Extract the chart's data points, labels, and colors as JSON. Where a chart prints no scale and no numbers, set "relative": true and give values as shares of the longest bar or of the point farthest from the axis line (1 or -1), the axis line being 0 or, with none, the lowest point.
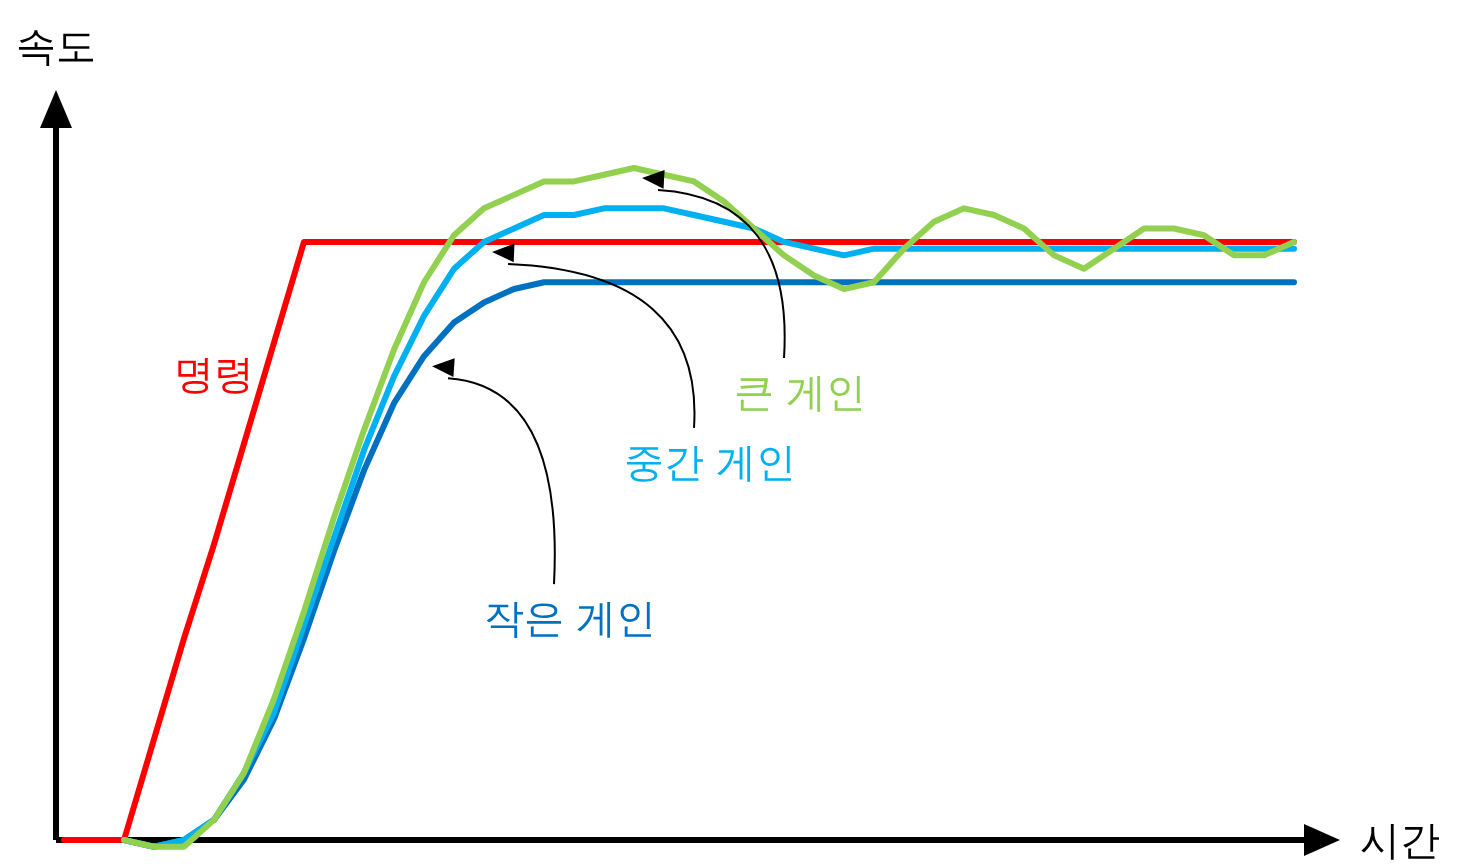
{
  "chart_data": {
    "type": "line",
    "relative": true,
    "xlabel": "시간",
    "ylabel": "속도",
    "categories": [
      null,
      null,
      null,
      null,
      null,
      null,
      null,
      null,
      null,
      null,
      null,
      null,
      null,
      null,
      null,
      null,
      null,
      null,
      null,
      null,
      null,
      null,
      null,
      null,
      null,
      null,
      null,
      null,
      null,
      null,
      null,
      null,
      null,
      null,
      null,
      null,
      null,
      null,
      null,
      null,
      null,
      null
    ],
    "series": [
      {
        "name": "명령",
        "color": "#ff0000",
        "values": [
          0,
          0,
          0,
          0.15,
          0.3,
          0.44,
          0.59,
          0.74,
          0.89,
          0.89,
          0.89,
          0.89,
          0.89,
          0.89,
          0.89,
          0.89,
          0.89,
          0.89,
          0.89,
          0.89,
          0.89,
          0.89,
          0.89,
          0.89,
          0.89,
          0.89,
          0.89,
          0.89,
          0.89,
          0.89,
          0.89,
          0.89,
          0.89,
          0.89,
          0.89,
          0.89,
          0.89,
          0.89,
          0.89,
          0.89,
          0.89,
          0.89
        ]
      },
      {
        "name": "작은 게인",
        "color": "#0070c0",
        "values": [
          null,
          null,
          0,
          -0.01,
          0,
          0.03,
          0.09,
          0.18,
          0.3,
          0.43,
          0.55,
          0.65,
          0.72,
          0.77,
          0.8,
          0.82,
          0.83,
          0.83,
          0.83,
          0.83,
          0.83,
          0.83,
          0.83,
          0.83,
          0.83,
          0.83,
          0.83,
          0.83,
          0.83,
          0.83,
          0.83,
          0.83,
          0.83,
          0.83,
          0.83,
          0.83,
          0.83,
          0.83,
          0.83,
          0.83,
          0.83,
          0.83
        ]
      },
      {
        "name": "중간 게인",
        "color": "#00b0f0",
        "values": [
          null,
          null,
          0,
          -0.01,
          0,
          0.03,
          0.1,
          0.19,
          0.32,
          0.45,
          0.58,
          0.69,
          0.78,
          0.85,
          0.89,
          0.91,
          0.93,
          0.93,
          0.94,
          0.94,
          0.94,
          0.93,
          0.92,
          0.91,
          0.89,
          0.88,
          0.87,
          0.88,
          0.88,
          0.88,
          0.88,
          0.88,
          0.88,
          0.88,
          0.88,
          0.88,
          0.88,
          0.88,
          0.88,
          0.88,
          0.88,
          0.88
        ]
      },
      {
        "name": "큰 게인",
        "color": "#92d050",
        "values": [
          null,
          null,
          0,
          -0.01,
          -0.01,
          0.03,
          0.1,
          0.21,
          0.34,
          0.48,
          0.61,
          0.73,
          0.83,
          0.9,
          0.94,
          0.96,
          0.98,
          0.98,
          0.99,
          1.0,
          0.99,
          0.98,
          0.95,
          0.91,
          0.87,
          0.84,
          0.82,
          0.83,
          0.88,
          0.92,
          0.94,
          0.93,
          0.91,
          0.87,
          0.85,
          0.88,
          0.91,
          0.91,
          0.9,
          0.87,
          0.87,
          0.89
        ]
      }
    ]
  }
}
